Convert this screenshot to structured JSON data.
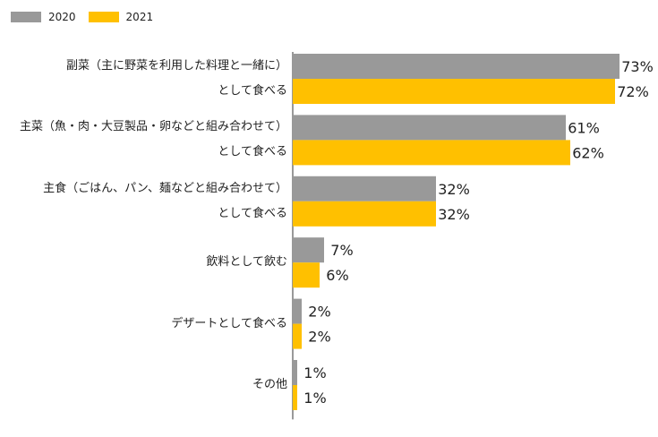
{
  "chart_data": {
    "type": "bar",
    "orientation": "horizontal",
    "xlim": [
      0,
      100
    ],
    "grid": false,
    "legend": "top-left",
    "series": [
      {
        "name": "2020",
        "color": "#999999",
        "values": [
          73,
          61,
          32,
          7,
          2,
          1
        ]
      },
      {
        "name": "2021",
        "color": "#FFC000",
        "values": [
          72,
          62,
          32,
          6,
          2,
          1
        ]
      }
    ],
    "categories": [
      {
        "lines": [
          "副菜（主に野菜を利用した料理と一緒に）",
          "として食べる"
        ]
      },
      {
        "lines": [
          "主菜（魚・肉・大豆製品・卵などと組み合わせて）",
          "として食べる"
        ]
      },
      {
        "lines": [
          "主食（ごはん、パン、麺などと組み合わせて）",
          "として食べる"
        ]
      },
      {
        "lines": [
          "飲料として飲む"
        ]
      },
      {
        "lines": [
          "デザートとして食べる"
        ]
      },
      {
        "lines": [
          "その他"
        ]
      }
    ],
    "value_suffix": "%"
  }
}
